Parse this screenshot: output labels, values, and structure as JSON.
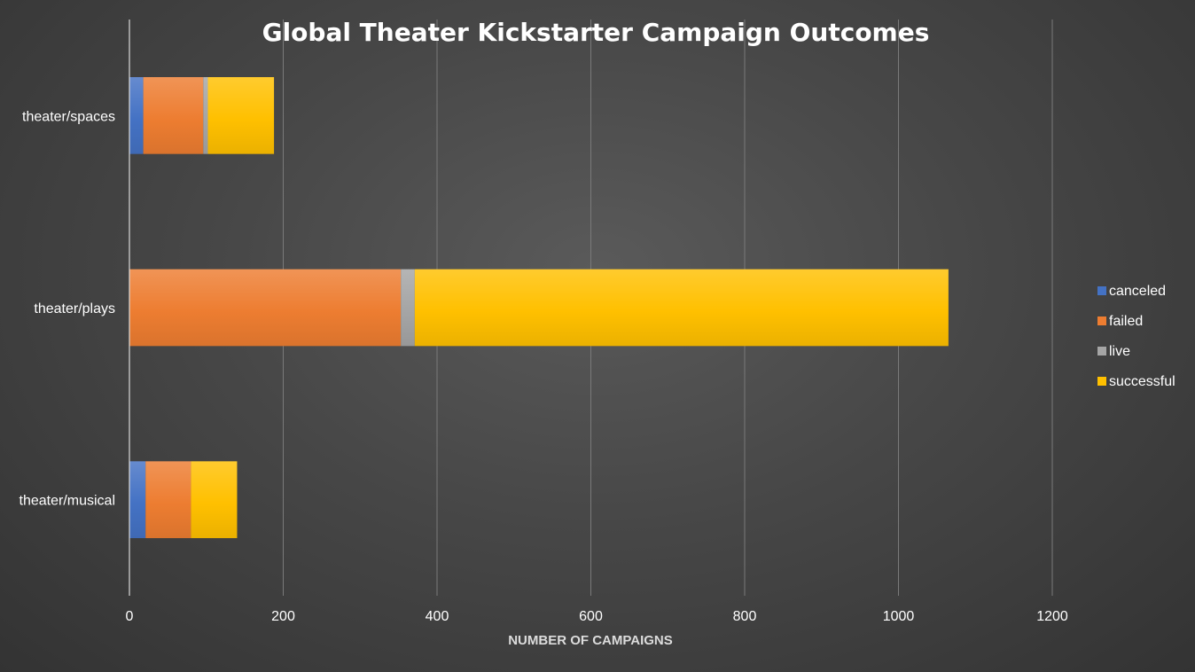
{
  "chart_data": {
    "type": "bar",
    "orientation": "horizontal",
    "stacked": true,
    "title": "Global Theater Kickstarter Campaign Outcomes",
    "xlabel": "NUMBER OF CAMPAIGNS",
    "ylabel": "",
    "xlim": [
      0,
      1200
    ],
    "xticks": [
      "0",
      "200",
      "400",
      "600",
      "800",
      "1000",
      "1200"
    ],
    "categories": [
      "theater/musical",
      "theater/plays",
      "theater/spaces"
    ],
    "series": [
      {
        "name": "canceled",
        "values": [
          21,
          0,
          18
        ],
        "color": "#4472C4"
      },
      {
        "name": "failed",
        "values": [
          59,
          353,
          78
        ],
        "color": "#ED7D31"
      },
      {
        "name": "live",
        "values": [
          0,
          18,
          6
        ],
        "color": "#A5A5A5"
      },
      {
        "name": "successful",
        "values": [
          60,
          694,
          86
        ],
        "color": "#FFC000"
      }
    ],
    "grid": true,
    "legend": "right"
  }
}
